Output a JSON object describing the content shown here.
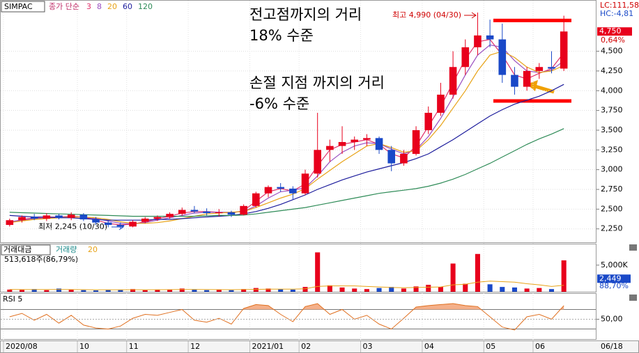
{
  "chart_data": [
    {
      "type": "candlestick",
      "title": "SIMPAC",
      "ma_label": "종가 단순",
      "categories": [
        "2020/08",
        null,
        null,
        null,
        null,
        null,
        "10",
        null,
        null,
        null,
        "11",
        null,
        null,
        null,
        null,
        "12",
        null,
        null,
        null,
        null,
        "2021/01",
        null,
        null,
        null,
        "02",
        null,
        null,
        null,
        null,
        "03",
        null,
        null,
        null,
        null,
        "04",
        null,
        null,
        null,
        null,
        "05",
        null,
        null,
        null,
        "06",
        null,
        null
      ],
      "current_date": "06/18",
      "candles": [
        {
          "o": 2300,
          "h": 2380,
          "l": 2280,
          "c": 2360
        },
        {
          "o": 2360,
          "h": 2420,
          "l": 2330,
          "c": 2400
        },
        {
          "o": 2400,
          "h": 2440,
          "l": 2360,
          "c": 2380
        },
        {
          "o": 2380,
          "h": 2450,
          "l": 2350,
          "c": 2420
        },
        {
          "o": 2420,
          "h": 2440,
          "l": 2370,
          "c": 2390
        },
        {
          "o": 2390,
          "h": 2460,
          "l": 2360,
          "c": 2430
        },
        {
          "o": 2430,
          "h": 2450,
          "l": 2350,
          "c": 2370
        },
        {
          "o": 2370,
          "h": 2400,
          "l": 2300,
          "c": 2330
        },
        {
          "o": 2330,
          "h": 2360,
          "l": 2270,
          "c": 2300
        },
        {
          "o": 2300,
          "h": 2330,
          "l": 2245,
          "c": 2280
        },
        {
          "o": 2280,
          "h": 2360,
          "l": 2270,
          "c": 2340
        },
        {
          "o": 2340,
          "h": 2400,
          "l": 2320,
          "c": 2380
        },
        {
          "o": 2380,
          "h": 2420,
          "l": 2350,
          "c": 2400
        },
        {
          "o": 2400,
          "h": 2460,
          "l": 2380,
          "c": 2440
        },
        {
          "o": 2440,
          "h": 2520,
          "l": 2420,
          "c": 2490
        },
        {
          "o": 2490,
          "h": 2540,
          "l": 2450,
          "c": 2470
        },
        {
          "o": 2470,
          "h": 2510,
          "l": 2420,
          "c": 2450
        },
        {
          "o": 2450,
          "h": 2500,
          "l": 2410,
          "c": 2460
        },
        {
          "o": 2460,
          "h": 2480,
          "l": 2400,
          "c": 2430
        },
        {
          "o": 2430,
          "h": 2560,
          "l": 2420,
          "c": 2540
        },
        {
          "o": 2540,
          "h": 2720,
          "l": 2520,
          "c": 2700
        },
        {
          "o": 2700,
          "h": 2800,
          "l": 2650,
          "c": 2780
        },
        {
          "o": 2780,
          "h": 2830,
          "l": 2720,
          "c": 2760
        },
        {
          "o": 2760,
          "h": 2790,
          "l": 2620,
          "c": 2700
        },
        {
          "o": 2700,
          "h": 3000,
          "l": 2680,
          "c": 2950
        },
        {
          "o": 2950,
          "h": 3720,
          "l": 2900,
          "c": 3250
        },
        {
          "o": 3250,
          "h": 3380,
          "l": 3100,
          "c": 3300
        },
        {
          "o": 3300,
          "h": 3550,
          "l": 3200,
          "c": 3350
        },
        {
          "o": 3350,
          "h": 3420,
          "l": 3250,
          "c": 3380
        },
        {
          "o": 3380,
          "h": 3450,
          "l": 3300,
          "c": 3400
        },
        {
          "o": 3400,
          "h": 3420,
          "l": 3200,
          "c": 3250
        },
        {
          "o": 3250,
          "h": 3300,
          "l": 2980,
          "c": 3080
        },
        {
          "o": 3080,
          "h": 3250,
          "l": 3050,
          "c": 3200
        },
        {
          "o": 3200,
          "h": 3550,
          "l": 3180,
          "c": 3500
        },
        {
          "o": 3500,
          "h": 3800,
          "l": 3450,
          "c": 3720
        },
        {
          "o": 3720,
          "h": 4100,
          "l": 3680,
          "c": 3950
        },
        {
          "o": 3950,
          "h": 4500,
          "l": 3900,
          "c": 4300
        },
        {
          "o": 4300,
          "h": 4650,
          "l": 4200,
          "c": 4550
        },
        {
          "o": 4550,
          "h": 4990,
          "l": 4450,
          "c": 4700
        },
        {
          "o": 4700,
          "h": 4900,
          "l": 4550,
          "c": 4650
        },
        {
          "o": 4650,
          "h": 4850,
          "l": 4100,
          "c": 4200
        },
        {
          "o": 4200,
          "h": 4300,
          "l": 3950,
          "c": 4050
        },
        {
          "o": 4050,
          "h": 4300,
          "l": 4000,
          "c": 4250
        },
        {
          "o": 4250,
          "h": 4350,
          "l": 4150,
          "c": 4300
        },
        {
          "o": 4300,
          "h": 4500,
          "l": 4220,
          "c": 4280
        },
        {
          "o": 4280,
          "h": 4950,
          "l": 4250,
          "c": 4750
        }
      ],
      "up_color": "#e8001c",
      "down_color": "#1a49c8",
      "series": [
        {
          "name": "3",
          "color": "#e0306a",
          "values": [
            2330,
            2370,
            2390,
            2400,
            2400,
            2410,
            2400,
            2360,
            2320,
            2300,
            2310,
            2340,
            2380,
            2410,
            2450,
            2470,
            2470,
            2460,
            2450,
            2480,
            2600,
            2720,
            2760,
            2730,
            2820,
            3050,
            3250,
            3320,
            3350,
            3380,
            3320,
            3200,
            3150,
            3300,
            3550,
            3800,
            4100,
            4400,
            4620,
            4650,
            4450,
            4200,
            4150,
            4220,
            4280,
            4480
          ]
        },
        {
          "name": "8",
          "color": "#9a4fc0",
          "values": [
            2340,
            2360,
            2380,
            2390,
            2400,
            2400,
            2400,
            2380,
            2350,
            2320,
            2310,
            2330,
            2360,
            2390,
            2420,
            2450,
            2460,
            2460,
            2460,
            2470,
            2540,
            2640,
            2720,
            2740,
            2770,
            2920,
            3100,
            3220,
            3300,
            3340,
            3330,
            3260,
            3200,
            3250,
            3420,
            3650,
            3920,
            4200,
            4450,
            4580,
            4550,
            4380,
            4250,
            4230,
            4260,
            4380
          ]
        },
        {
          "name": "20",
          "color": "#e8a317",
          "values": [
            2330,
            2350,
            2370,
            2380,
            2390,
            2400,
            2400,
            2390,
            2370,
            2340,
            2320,
            2320,
            2330,
            2350,
            2380,
            2410,
            2440,
            2450,
            2460,
            2470,
            2520,
            2580,
            2640,
            2690,
            2760,
            2880,
            2990,
            3100,
            3200,
            3300,
            3330,
            3280,
            3220,
            3240,
            3380,
            3560,
            3780,
            4000,
            4250,
            4450,
            4500,
            4420,
            4300,
            4230,
            4250,
            4320
          ]
        },
        {
          "name": "60",
          "color": "#1c1c9c",
          "values": [
            2420,
            2410,
            2400,
            2400,
            2390,
            2390,
            2380,
            2370,
            2360,
            2360,
            2360,
            2360,
            2370,
            2370,
            2380,
            2390,
            2400,
            2410,
            2420,
            2440,
            2470,
            2510,
            2560,
            2620,
            2680,
            2750,
            2810,
            2870,
            2920,
            2970,
            3010,
            3050,
            3090,
            3140,
            3200,
            3290,
            3380,
            3480,
            3580,
            3680,
            3760,
            3830,
            3880,
            3930,
            4000,
            4080
          ]
        },
        {
          "name": "120",
          "color": "#2e8b57",
          "values": [
            2460,
            2455,
            2450,
            2445,
            2440,
            2435,
            2430,
            2425,
            2420,
            2415,
            2410,
            2410,
            2410,
            2410,
            2410,
            2410,
            2415,
            2420,
            2420,
            2425,
            2440,
            2460,
            2480,
            2500,
            2520,
            2550,
            2580,
            2610,
            2640,
            2670,
            2700,
            2720,
            2740,
            2760,
            2790,
            2830,
            2880,
            2940,
            3010,
            3080,
            3160,
            3240,
            3320,
            3390,
            3450,
            3520
          ]
        }
      ],
      "ylim": [
        2080,
        5140
      ],
      "yticks": [
        {
          "value": 2250,
          "label": "2,250"
        },
        {
          "value": 2500,
          "label": "2,500"
        },
        {
          "value": 2750,
          "label": "2,750"
        },
        {
          "value": 3000,
          "label": "3,000"
        },
        {
          "value": 3250,
          "label": "3,250"
        },
        {
          "value": 3500,
          "label": "3,500"
        },
        {
          "value": 3750,
          "label": "3,750"
        },
        {
          "value": 4000,
          "label": "4,000"
        },
        {
          "value": 4250,
          "label": "4,250"
        },
        {
          "value": 4500,
          "label": "4,500"
        }
      ],
      "current_price": {
        "value": 4750,
        "label": "4,750"
      },
      "change_label": "0,64%",
      "lc_label": "LC:111,58",
      "hc_label": "HC:-4,81",
      "high_label": "최고 4,990 (04/30)",
      "low_label": "최저 2,245 (10/30)",
      "reference_lines": [
        {
          "value": 4890,
          "color": "#ff0000"
        },
        {
          "value": 3870,
          "color": "#ff0000"
        }
      ],
      "annotations": [
        "전고점까지의 거리",
        "18% 수준",
        "손절 지점 까지의 거리",
        "-6% 수준"
      ]
    },
    {
      "type": "bar",
      "title": "거래대금",
      "subtitle": "거래량",
      "ma_name": "20",
      "ma_color": "#e8a317",
      "info": "513,618주(86,79%)",
      "values": [
        400,
        350,
        500,
        300,
        600,
        450,
        300,
        250,
        350,
        400,
        500,
        300,
        350,
        400,
        600,
        450,
        300,
        350,
        300,
        500,
        700,
        600,
        500,
        400,
        900,
        7400,
        1200,
        800,
        600,
        500,
        700,
        900,
        600,
        1000,
        1300,
        900,
        5300,
        1500,
        7100,
        1400,
        900,
        800,
        600,
        700,
        500,
        5900
      ],
      "ma_values": [
        420,
        410,
        400,
        410,
        420,
        410,
        390,
        370,
        360,
        360,
        380,
        370,
        380,
        390,
        420,
        420,
        400,
        390,
        380,
        400,
        450,
        480,
        500,
        500,
        550,
        1000,
        1100,
        1100,
        1100,
        1000,
        900,
        800,
        750,
        800,
        850,
        900,
        1300,
        1400,
        1800,
        2000,
        1900,
        1800,
        1500,
        1300,
        1000,
        1200
      ],
      "ylim": [
        0,
        8900
      ],
      "yticks": [
        {
          "value": 5000,
          "label": "5,000K"
        }
      ],
      "last_value": {
        "value": 2449,
        "label": "2,449"
      },
      "ratio_label": "88,70%"
    },
    {
      "type": "line",
      "title": "RSI 5",
      "color": "#e07020",
      "fill": "#f4b08a",
      "values": [
        55,
        62,
        48,
        60,
        42,
        58,
        38,
        32,
        30,
        36,
        52,
        60,
        58,
        64,
        70,
        48,
        44,
        52,
        40,
        72,
        80,
        78,
        60,
        45,
        76,
        82,
        60,
        70,
        50,
        58,
        40,
        30,
        52,
        75,
        78,
        80,
        82,
        78,
        76,
        55,
        34,
        28,
        55,
        60,
        50,
        78
      ],
      "ylim": [
        8,
        102
      ],
      "yticks": [
        {
          "value": 50,
          "label": "50,00"
        }
      ],
      "guides": [
        30,
        70
      ]
    }
  ]
}
